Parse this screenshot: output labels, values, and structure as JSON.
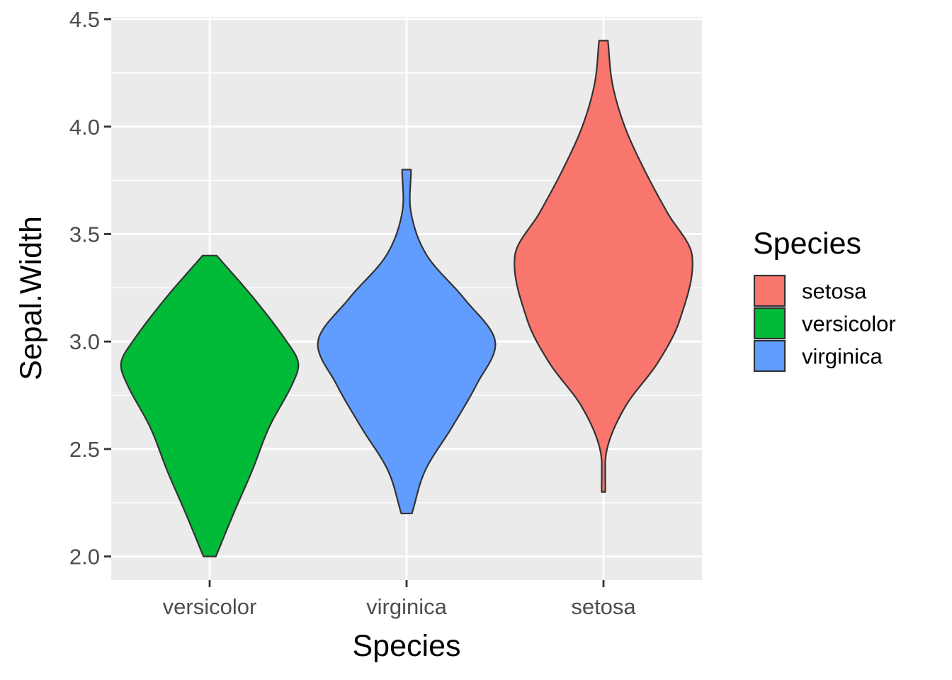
{
  "chart_data": {
    "type": "violin",
    "xlabel": "Species",
    "ylabel": "Sepal.Width",
    "categories": [
      "versicolor",
      "virginica",
      "setosa"
    ],
    "ylim": [
      1.89,
      4.51
    ],
    "yticks": [
      2.0,
      2.5,
      3.0,
      3.5,
      4.0,
      4.5
    ],
    "ytick_labels": [
      "2.0",
      "2.5",
      "3.0",
      "3.5",
      "4.0",
      "4.5"
    ],
    "grid": true,
    "panel_background": "#ebebeb",
    "legend": {
      "title": "Species",
      "position": "right",
      "entries": [
        {
          "label": "setosa",
          "color": "#F8766D"
        },
        {
          "label": "versicolor",
          "color": "#00BA38"
        },
        {
          "label": "virginica",
          "color": "#619CFF"
        }
      ]
    },
    "series": [
      {
        "category": "versicolor",
        "color": "#00BA38",
        "min": 2.0,
        "max": 3.4,
        "density_profile": [
          [
            2.0,
            0.07
          ],
          [
            2.2,
            0.27
          ],
          [
            2.4,
            0.48
          ],
          [
            2.6,
            0.67
          ],
          [
            2.8,
            0.93
          ],
          [
            2.9,
            1.0
          ],
          [
            3.0,
            0.87
          ],
          [
            3.2,
            0.5
          ],
          [
            3.4,
            0.08
          ]
        ]
      },
      {
        "category": "virginica",
        "color": "#619CFF",
        "min": 2.2,
        "max": 3.8,
        "density_profile": [
          [
            2.2,
            0.06
          ],
          [
            2.4,
            0.21
          ],
          [
            2.6,
            0.51
          ],
          [
            2.8,
            0.79
          ],
          [
            3.0,
            1.0
          ],
          [
            3.2,
            0.65
          ],
          [
            3.4,
            0.23
          ],
          [
            3.6,
            0.05
          ],
          [
            3.8,
            0.05
          ]
        ]
      },
      {
        "category": "setosa",
        "color": "#F8766D",
        "min": 2.3,
        "max": 4.4,
        "density_profile": [
          [
            2.3,
            0.02
          ],
          [
            2.5,
            0.04
          ],
          [
            2.7,
            0.25
          ],
          [
            2.9,
            0.61
          ],
          [
            3.1,
            0.86
          ],
          [
            3.4,
            1.0
          ],
          [
            3.6,
            0.72
          ],
          [
            3.8,
            0.46
          ],
          [
            4.0,
            0.24
          ],
          [
            4.2,
            0.1
          ],
          [
            4.4,
            0.05
          ]
        ]
      }
    ]
  }
}
